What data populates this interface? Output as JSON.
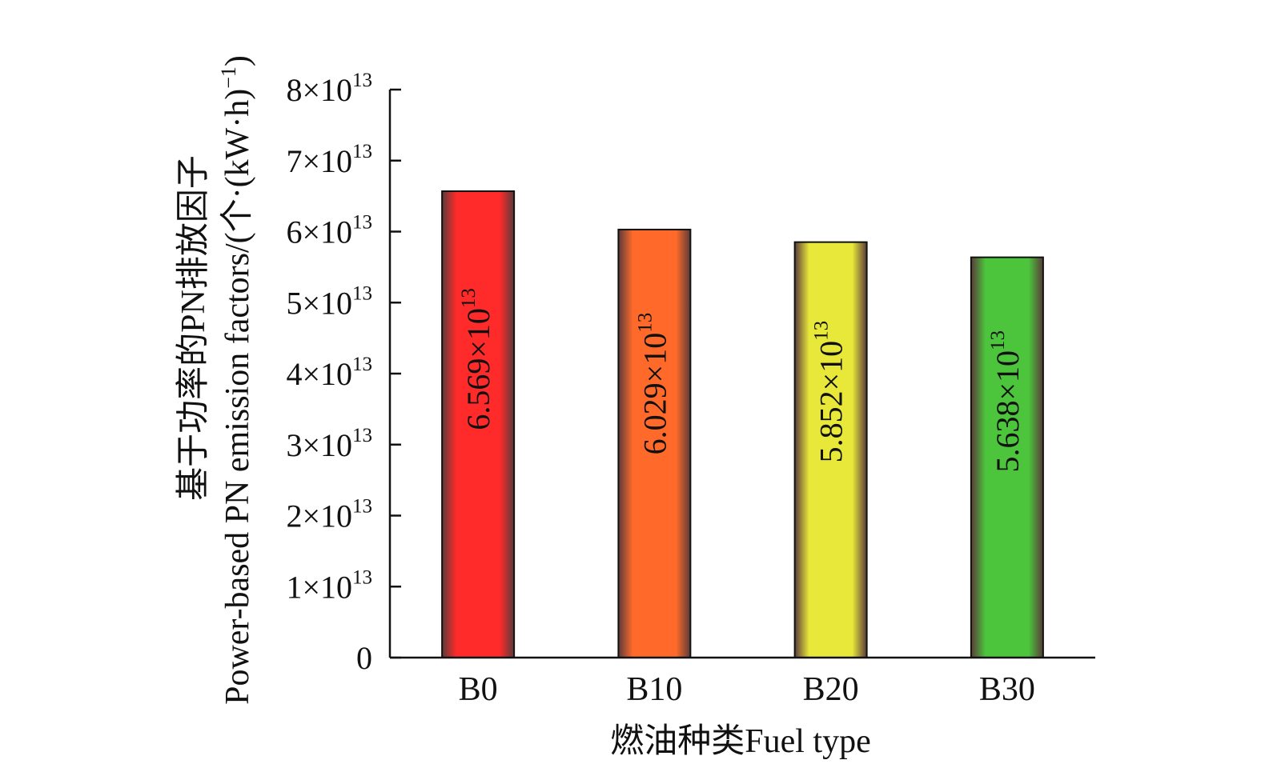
{
  "chart_data": {
    "type": "bar",
    "categories": [
      "B0",
      "B10",
      "B20",
      "B30"
    ],
    "values": [
      65690000000000.0,
      60290000000000.0,
      58520000000000.0,
      56380000000000.0
    ],
    "data_labels": [
      {
        "mantissa": "6.569×10",
        "exp": "13"
      },
      {
        "mantissa": "6.029×10",
        "exp": "13"
      },
      {
        "mantissa": "5.852×10",
        "exp": "13"
      },
      {
        "mantissa": "5.638×10",
        "exp": "13"
      }
    ],
    "bar_colors": [
      "#ff2a2a",
      "#ff6a2a",
      "#e8e83a",
      "#4cc43c"
    ],
    "xlabel": "燃油种类Fuel type",
    "ylabel_line1": "基于功率的PN排放因子",
    "ylabel_line2": "Power-based PN emission factors/(个·(kW·h)",
    "ylabel_sup": "−1",
    "ylabel_close": ")",
    "ylim": [
      0,
      80000000000000.0
    ],
    "yticks": [
      {
        "value": 0,
        "mantissa": "0",
        "exp": ""
      },
      {
        "value": 10000000000000.0,
        "mantissa": "1×10",
        "exp": "13"
      },
      {
        "value": 20000000000000.0,
        "mantissa": "2×10",
        "exp": "13"
      },
      {
        "value": 30000000000000.0,
        "mantissa": "3×10",
        "exp": "13"
      },
      {
        "value": 40000000000000.0,
        "mantissa": "4×10",
        "exp": "13"
      },
      {
        "value": 50000000000000.0,
        "mantissa": "5×10",
        "exp": "13"
      },
      {
        "value": 60000000000000.0,
        "mantissa": "6×10",
        "exp": "13"
      },
      {
        "value": 70000000000000.0,
        "mantissa": "7×10",
        "exp": "13"
      },
      {
        "value": 80000000000000.0,
        "mantissa": "8×10",
        "exp": "13"
      }
    ],
    "grid": false,
    "legend": "none"
  }
}
